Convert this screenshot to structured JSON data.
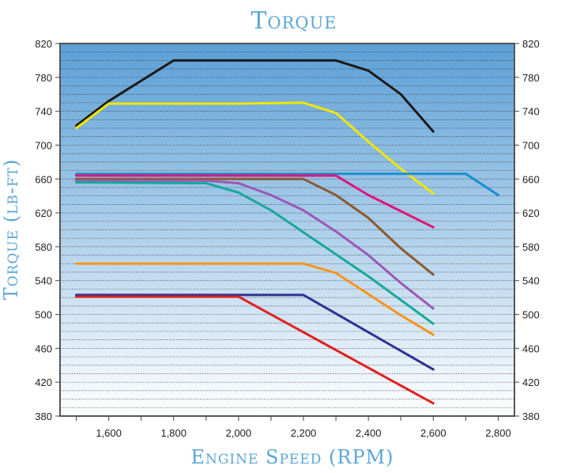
{
  "chart_data": {
    "type": "line",
    "title": "Torque",
    "xlabel": "Engine Speed (RPM)",
    "ylabel": "Torque (lb-ft)",
    "xlim": [
      1450,
      2850
    ],
    "ylim": [
      380,
      820
    ],
    "x_ticks": [
      1600,
      1800,
      2000,
      2200,
      2400,
      2600,
      2800
    ],
    "x_tick_labels": [
      "1,600",
      "1,800",
      "2,000",
      "2,200",
      "2,400",
      "2,600",
      "2,800"
    ],
    "y_ticks": [
      380,
      420,
      460,
      500,
      540,
      580,
      620,
      660,
      700,
      740,
      780,
      820
    ],
    "y_tick_labels": [
      "380",
      "420",
      "460",
      "500",
      "540",
      "580",
      "620",
      "660",
      "700",
      "740",
      "780",
      "820"
    ],
    "minor_grid_step": 10,
    "grid": true,
    "legend": "none",
    "background_gradient": [
      "#5b9fd6",
      "#ffffff"
    ],
    "series": [
      {
        "color": "#1a1a1a",
        "points": [
          [
            1500,
            723
          ],
          [
            1600,
            752
          ],
          [
            1800,
            800
          ],
          [
            2300,
            800
          ],
          [
            2400,
            788
          ],
          [
            2500,
            760
          ],
          [
            2600,
            716
          ]
        ]
      },
      {
        "color": "#f2e600",
        "points": [
          [
            1500,
            720
          ],
          [
            1600,
            749
          ],
          [
            2000,
            749
          ],
          [
            2200,
            750
          ],
          [
            2300,
            738
          ],
          [
            2400,
            704
          ],
          [
            2500,
            672
          ],
          [
            2600,
            643
          ]
        ]
      },
      {
        "color": "#1a8fd0",
        "points": [
          [
            1500,
            666
          ],
          [
            2700,
            666
          ],
          [
            2800,
            641
          ]
        ]
      },
      {
        "color": "#e0137a",
        "points": [
          [
            1500,
            664
          ],
          [
            2300,
            664
          ],
          [
            2400,
            641
          ],
          [
            2600,
            603
          ]
        ]
      },
      {
        "color": "#8a5a32",
        "points": [
          [
            1500,
            660
          ],
          [
            2200,
            660
          ],
          [
            2300,
            641
          ],
          [
            2400,
            614
          ],
          [
            2500,
            578
          ],
          [
            2600,
            547
          ]
        ]
      },
      {
        "color": "#9b59b6",
        "points": [
          [
            1500,
            658
          ],
          [
            1900,
            658
          ],
          [
            2000,
            655
          ],
          [
            2100,
            641
          ],
          [
            2200,
            623
          ],
          [
            2300,
            598
          ],
          [
            2400,
            570
          ],
          [
            2500,
            537
          ],
          [
            2600,
            507
          ]
        ]
      },
      {
        "color": "#17a89a",
        "points": [
          [
            1500,
            656
          ],
          [
            1900,
            655
          ],
          [
            2000,
            644
          ],
          [
            2100,
            623
          ],
          [
            2200,
            597
          ],
          [
            2300,
            571
          ],
          [
            2400,
            545
          ],
          [
            2500,
            517
          ],
          [
            2600,
            489
          ]
        ]
      },
      {
        "color": "#f7941d",
        "points": [
          [
            1500,
            560
          ],
          [
            2200,
            560
          ],
          [
            2300,
            549
          ],
          [
            2400,
            524
          ],
          [
            2500,
            499
          ],
          [
            2600,
            476
          ]
        ]
      },
      {
        "color": "#2e3192",
        "points": [
          [
            1500,
            523
          ],
          [
            2200,
            523
          ],
          [
            2600,
            435
          ]
        ]
      },
      {
        "color": "#e02020",
        "points": [
          [
            1500,
            521
          ],
          [
            2000,
            521
          ],
          [
            2600,
            395
          ]
        ]
      }
    ]
  }
}
